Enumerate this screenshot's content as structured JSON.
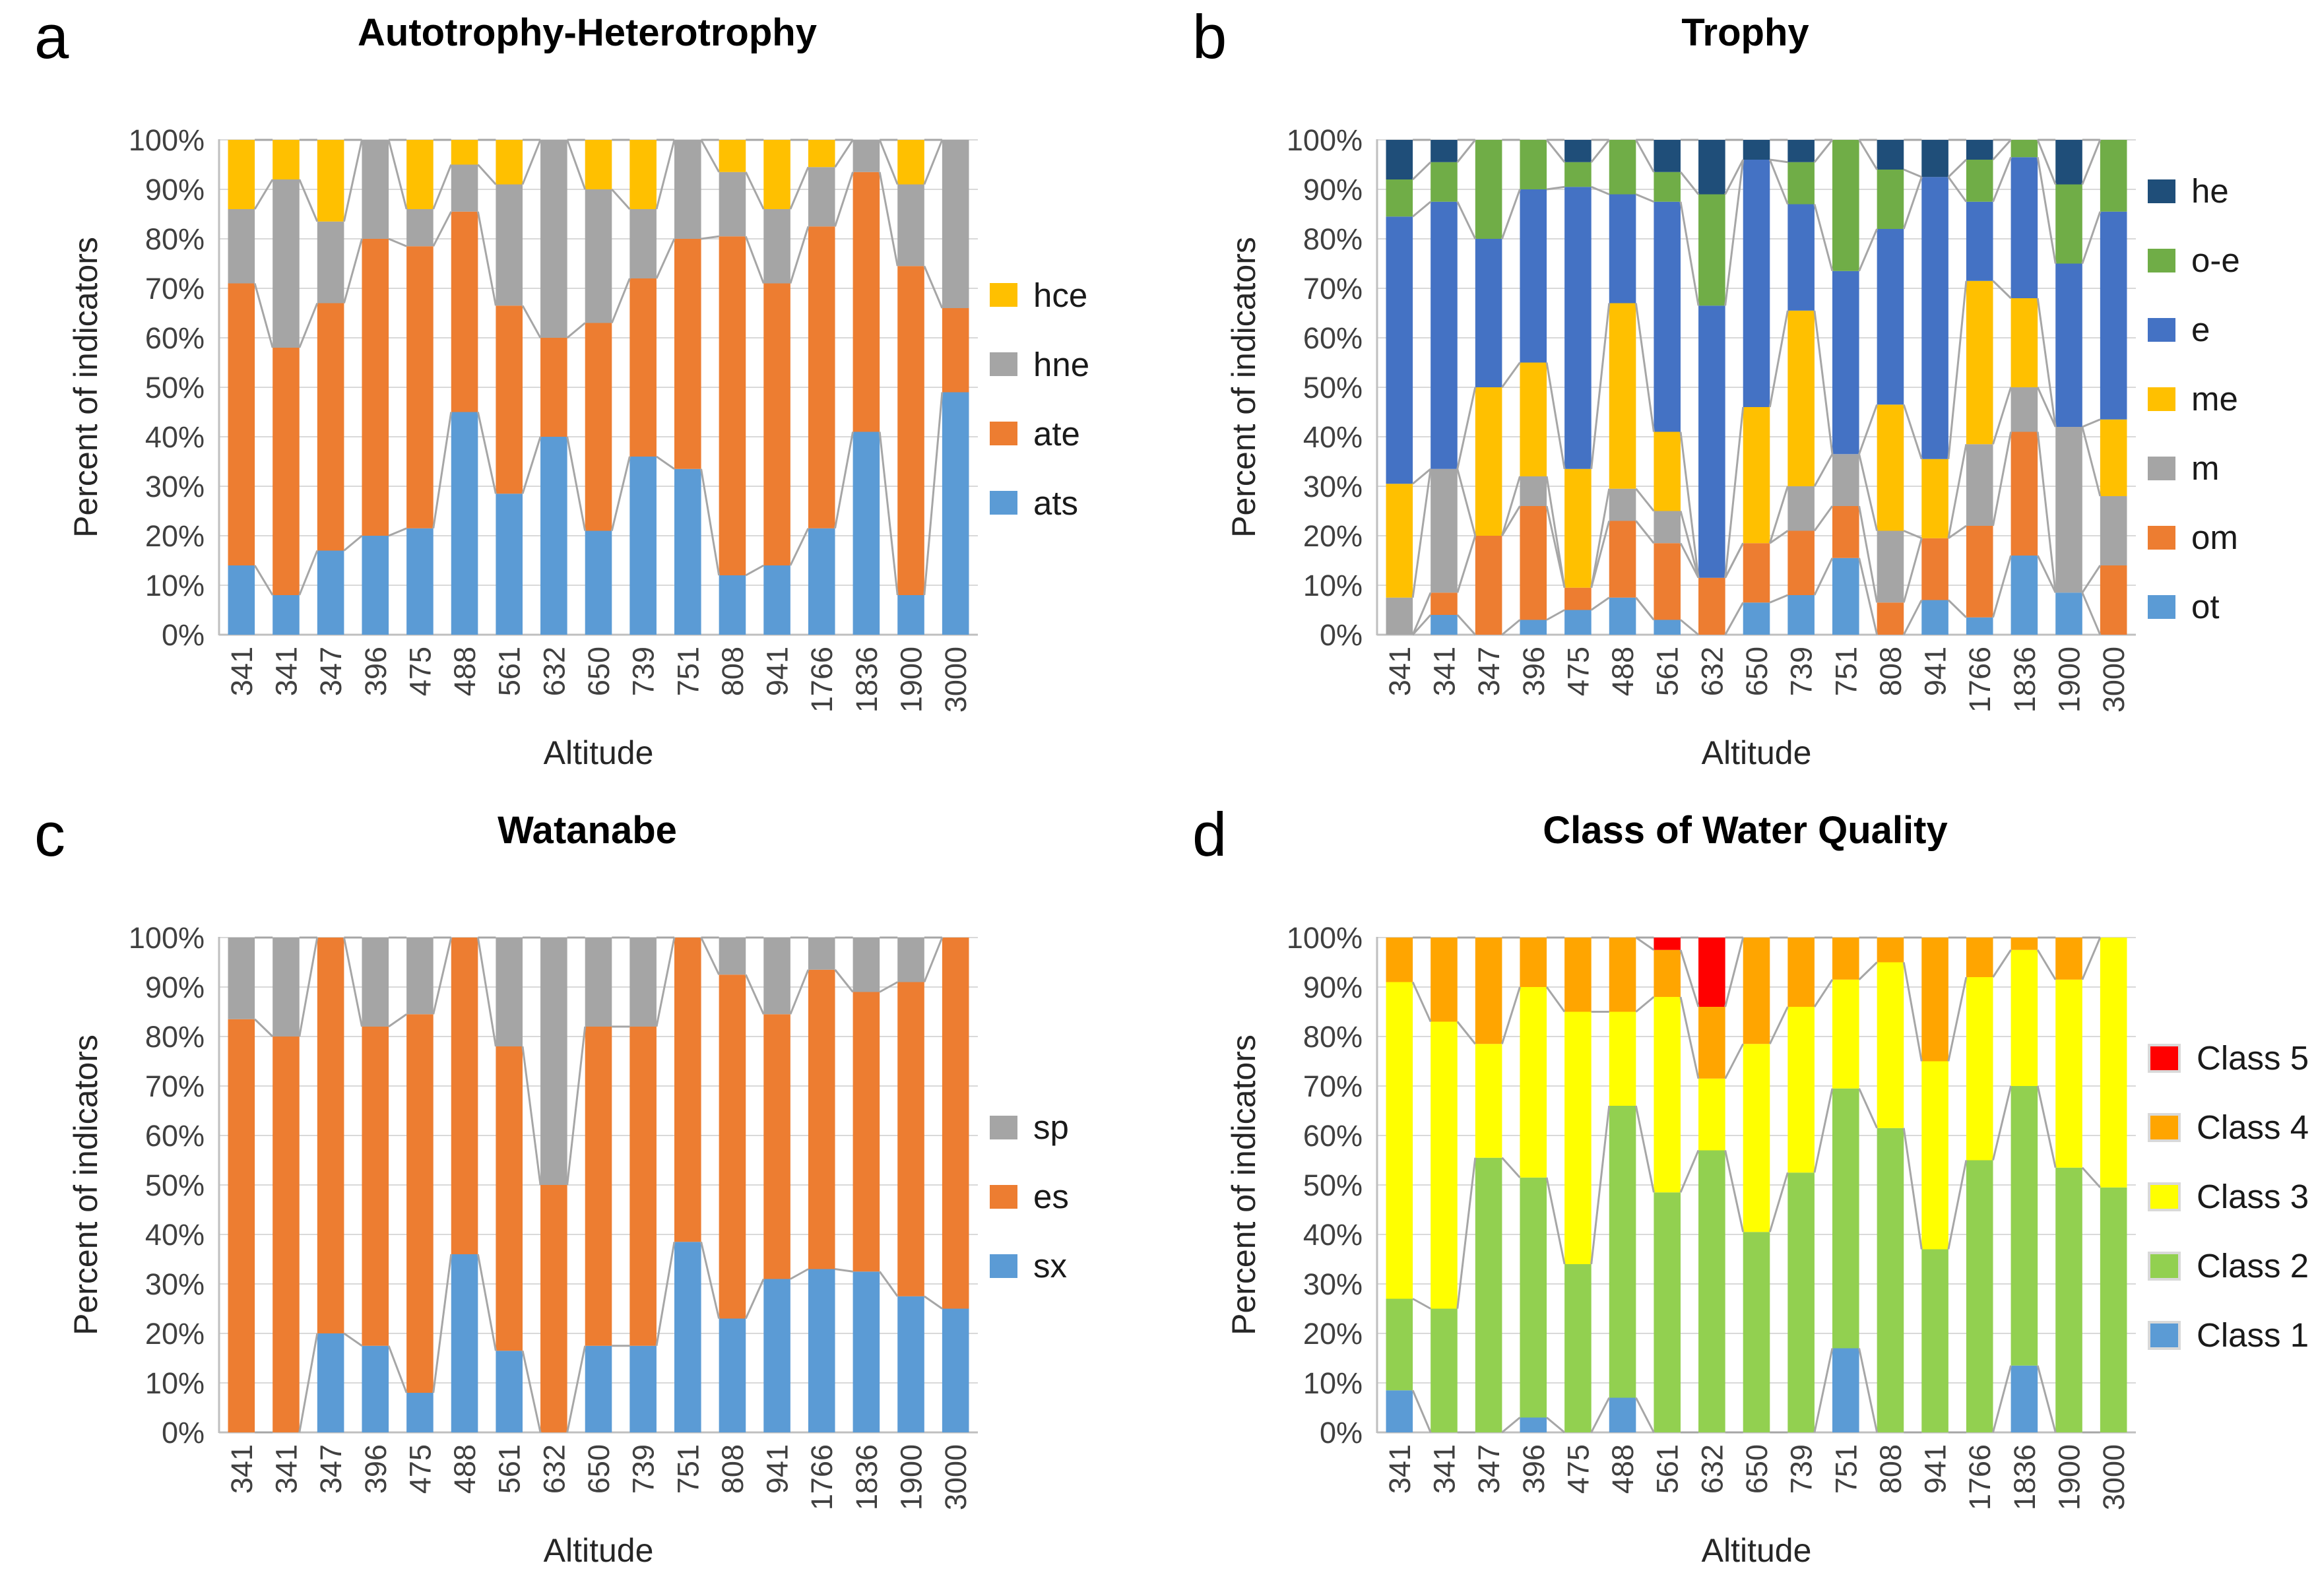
{
  "y_axis_ticks": [
    "100%",
    "90%",
    "80%",
    "70%",
    "60%",
    "50%",
    "40%",
    "30%",
    "20%",
    "10%",
    "0%"
  ],
  "chart_data": [
    {
      "panel_letter": "a",
      "title": "Autotrophy-Heterotrophy",
      "type": "bar",
      "stacked": true,
      "units": "percent",
      "xlabel": "Altitude",
      "ylabel": "Percent of indicators",
      "ylim": [
        0,
        100
      ],
      "grid": true,
      "legend_position": "right",
      "swatch_border": false,
      "categories": [
        "341",
        "341",
        "347",
        "396",
        "475",
        "488",
        "561",
        "632",
        "650",
        "739",
        "751",
        "808",
        "941",
        "1766",
        "1836",
        "1900",
        "3000"
      ],
      "series": [
        {
          "name": "ats",
          "color": "#5B9BD5",
          "values": [
            14,
            8,
            17,
            20,
            21.5,
            45,
            28.5,
            40,
            21,
            36,
            33.5,
            12,
            14,
            21.5,
            41,
            8,
            49
          ]
        },
        {
          "name": "ate",
          "color": "#ED7D31",
          "values": [
            57,
            50,
            50,
            60,
            57,
            40.5,
            38,
            20,
            42,
            36,
            46.5,
            68.5,
            57,
            61,
            52.5,
            66.5,
            17
          ]
        },
        {
          "name": "hne",
          "color": "#A5A5A5",
          "values": [
            15,
            34,
            16.5,
            20,
            7.5,
            9.5,
            24.5,
            40,
            27,
            14,
            20,
            13,
            15,
            12,
            6.5,
            16.5,
            34
          ]
        },
        {
          "name": "hce",
          "color": "#FFC000",
          "values": [
            14,
            8,
            16.5,
            0,
            14,
            5,
            9,
            0,
            10,
            14,
            0,
            6.5,
            14,
            5.5,
            0,
            9,
            0
          ]
        }
      ],
      "legend": [
        {
          "label": "hce",
          "color": "#FFC000"
        },
        {
          "label": "hne",
          "color": "#A5A5A5"
        },
        {
          "label": "ate",
          "color": "#ED7D31"
        },
        {
          "label": "ats",
          "color": "#5B9BD5"
        }
      ]
    },
    {
      "panel_letter": "b",
      "title": "Trophy",
      "type": "bar",
      "stacked": true,
      "units": "percent",
      "xlabel": "Altitude",
      "ylabel": "Percent of indicators",
      "ylim": [
        0,
        100
      ],
      "grid": true,
      "legend_position": "right",
      "swatch_border": false,
      "categories": [
        "341",
        "341",
        "347",
        "396",
        "475",
        "488",
        "561",
        "632",
        "650",
        "739",
        "751",
        "808",
        "941",
        "1766",
        "1836",
        "1900",
        "3000"
      ],
      "series": [
        {
          "name": "ot",
          "color": "#5B9BD5",
          "values": [
            0,
            4,
            0,
            3,
            5,
            7.5,
            3,
            0,
            6.5,
            8,
            15.5,
            0,
            7,
            3.5,
            16,
            8.5,
            0
          ]
        },
        {
          "name": "om",
          "color": "#ED7D31",
          "values": [
            0,
            4.5,
            20,
            23,
            4.5,
            15.5,
            15.5,
            11.5,
            12,
            13,
            10.5,
            6.5,
            12.5,
            18.5,
            25,
            0,
            14
          ]
        },
        {
          "name": "m",
          "color": "#A5A5A5",
          "values": [
            7.5,
            25,
            0,
            6,
            0,
            6.5,
            6.5,
            0,
            0,
            9,
            10.5,
            14.5,
            0,
            16.5,
            9,
            33.5,
            14
          ]
        },
        {
          "name": "me",
          "color": "#FFC000",
          "values": [
            23,
            0,
            30,
            23,
            24,
            37.5,
            16,
            0,
            27.5,
            35.5,
            0,
            25.5,
            16,
            33,
            18,
            0,
            15.5
          ]
        },
        {
          "name": "e",
          "color": "#4472C4",
          "values": [
            54,
            54,
            30,
            35,
            57,
            22,
            46.5,
            55,
            50,
            21.5,
            37,
            35.5,
            57,
            16,
            28.5,
            33,
            42
          ]
        },
        {
          "name": "o-e",
          "color": "#70AD47",
          "values": [
            7.5,
            8,
            20,
            10,
            5,
            11,
            6,
            22.5,
            0,
            8.5,
            26.5,
            12,
            0,
            8.5,
            3.5,
            16,
            14.5
          ]
        },
        {
          "name": "he",
          "color": "#1F4E79",
          "values": [
            8,
            4.5,
            0,
            0,
            4.5,
            0,
            6.5,
            11,
            4,
            4.5,
            0,
            6,
            7.5,
            4,
            0,
            9,
            0
          ]
        }
      ],
      "legend": [
        {
          "label": "he",
          "color": "#1F4E79"
        },
        {
          "label": "o-e",
          "color": "#70AD47"
        },
        {
          "label": "e",
          "color": "#4472C4"
        },
        {
          "label": "me",
          "color": "#FFC000"
        },
        {
          "label": "m",
          "color": "#A5A5A5"
        },
        {
          "label": "om",
          "color": "#ED7D31"
        },
        {
          "label": "ot",
          "color": "#5B9BD5"
        }
      ]
    },
    {
      "panel_letter": "c",
      "title": "Watanabe",
      "type": "bar",
      "stacked": true,
      "units": "percent",
      "xlabel": "Altitude",
      "ylabel": "Percent of indicators",
      "ylim": [
        0,
        100
      ],
      "grid": true,
      "legend_position": "right",
      "swatch_border": false,
      "categories": [
        "341",
        "341",
        "347",
        "396",
        "475",
        "488",
        "561",
        "632",
        "650",
        "739",
        "751",
        "808",
        "941",
        "1766",
        "1836",
        "1900",
        "3000"
      ],
      "series": [
        {
          "name": "sx",
          "color": "#5B9BD5",
          "values": [
            0,
            0,
            20,
            17.5,
            8,
            36,
            16.5,
            0,
            17.5,
            17.5,
            38.5,
            23,
            31,
            33,
            32.5,
            27.5,
            25
          ]
        },
        {
          "name": "es",
          "color": "#ED7D31",
          "values": [
            83.5,
            80,
            80,
            64.5,
            76.5,
            64,
            61.5,
            50,
            64.5,
            64.5,
            61.5,
            69.5,
            53.5,
            60.5,
            56.5,
            63.5,
            75
          ]
        },
        {
          "name": "sp",
          "color": "#A5A5A5",
          "values": [
            16.5,
            20,
            0,
            18,
            15.5,
            0,
            22,
            50,
            18,
            18,
            0,
            7.5,
            15.5,
            6.5,
            11,
            9,
            0
          ]
        }
      ],
      "legend": [
        {
          "label": "sp",
          "color": "#A5A5A5"
        },
        {
          "label": "es",
          "color": "#ED7D31"
        },
        {
          "label": "sx",
          "color": "#5B9BD5"
        }
      ]
    },
    {
      "panel_letter": "d",
      "title": "Class of Water Quality",
      "type": "bar",
      "stacked": true,
      "units": "percent",
      "xlabel": "Altitude",
      "ylabel": "Percent of indicators",
      "ylim": [
        0,
        100
      ],
      "grid": true,
      "legend_position": "right",
      "swatch_border": true,
      "categories": [
        "341",
        "341",
        "347",
        "396",
        "475",
        "488",
        "561",
        "632",
        "650",
        "739",
        "751",
        "808",
        "941",
        "1766",
        "1836",
        "1900",
        "3000"
      ],
      "series": [
        {
          "name": "Class 1",
          "color": "#5B9BD5",
          "values": [
            8.5,
            0,
            0,
            3,
            0,
            7,
            0,
            0,
            0,
            0,
            17,
            0,
            0,
            0,
            13.5,
            0,
            0
          ]
        },
        {
          "name": "Class 2",
          "color": "#92D050",
          "values": [
            18.5,
            25,
            55.5,
            48.5,
            34,
            59,
            48.5,
            57,
            40.5,
            52.5,
            52.5,
            61.5,
            37,
            55,
            56.5,
            53.5,
            49.5
          ]
        },
        {
          "name": "Class 3",
          "color": "#FFFF00",
          "values": [
            64,
            58,
            23,
            38.5,
            51,
            19,
            39.5,
            14.5,
            38,
            33.5,
            22,
            33.5,
            38,
            37,
            27.5,
            38,
            50.5
          ]
        },
        {
          "name": "Class 4",
          "color": "#FFA500",
          "values": [
            9,
            17,
            21.5,
            10,
            15,
            15,
            9.5,
            14.5,
            21.5,
            14,
            8.5,
            5,
            25,
            8,
            2.5,
            8.5,
            0
          ]
        },
        {
          "name": "Class 5",
          "color": "#FF0000",
          "values": [
            0,
            0,
            0,
            0,
            0,
            0,
            2.5,
            14,
            0,
            0,
            0,
            0,
            0,
            0,
            0,
            0,
            0
          ]
        }
      ],
      "legend": [
        {
          "label": "Class 5",
          "color": "#FF0000"
        },
        {
          "label": "Class 4",
          "color": "#FFA500"
        },
        {
          "label": "Class 3",
          "color": "#FFFF00"
        },
        {
          "label": "Class 2",
          "color": "#92D050"
        },
        {
          "label": "Class 1",
          "color": "#5B9BD5"
        }
      ]
    }
  ],
  "style": {
    "gridline_color": "#D9D9D9",
    "axis_color": "#BFBFBF",
    "series_line_color": "#A6A6A6",
    "tick_color": "#404040"
  }
}
